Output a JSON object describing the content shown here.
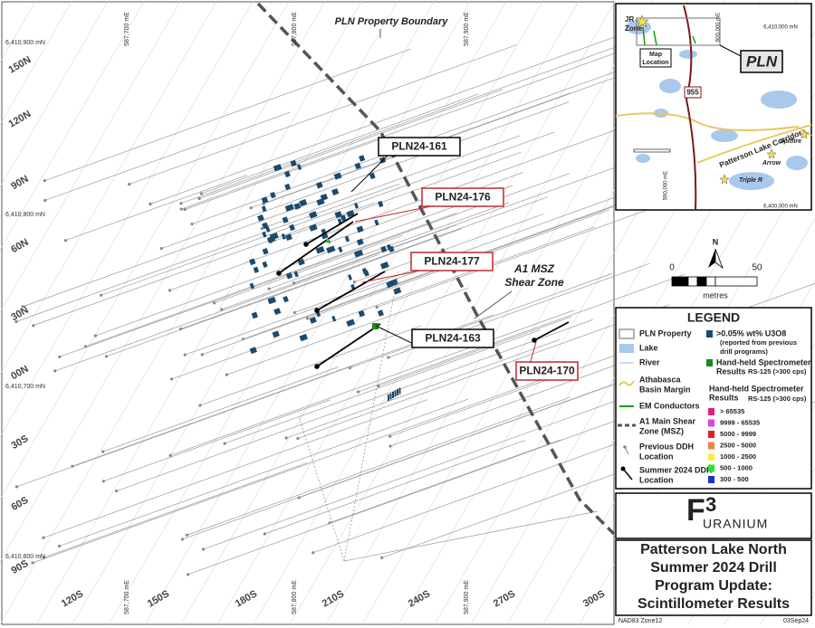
{
  "map": {
    "boundary_label": "PLN Property Boundary",
    "shear_zone_label": [
      "A1 MSZ",
      "Shear Zone"
    ],
    "section_labels_left": [
      "150N",
      "120N",
      "90N",
      "60N",
      "30N",
      "00N",
      "30S",
      "60S",
      "90S"
    ],
    "section_labels_bottom": [
      "120S",
      "150S",
      "180S",
      "210S",
      "240S",
      "270S",
      "300S"
    ],
    "easting_labels_top": [
      "587,700 mE",
      "587,800 mE",
      "587,900 mE"
    ],
    "easting_labels_bottom": [
      "587,700 mE",
      "587,800 mE",
      "587,900 mE"
    ],
    "northing_labels": [
      "6,410,900 mN",
      "6,410,800 mN",
      "6,410,700 mN",
      "6,410,600 mN"
    ],
    "drill_holes": [
      {
        "label": "PLN24-161",
        "color": "#000000"
      },
      {
        "label": "PLN24-176",
        "color": "#c0282d"
      },
      {
        "label": "PLN24-177",
        "color": "#c0282d"
      },
      {
        "label": "PLN24-163",
        "color": "#000000"
      },
      {
        "label": "PLN24-170",
        "color": "#c0282d"
      }
    ],
    "scale": {
      "north": "N",
      "start": "0",
      "end": "50",
      "unit": "metres"
    }
  },
  "inset": {
    "jr_zone": [
      "JR",
      "Zone"
    ],
    "map_location": [
      "Map",
      "Location"
    ],
    "pln": "PLN",
    "highway": "955",
    "corridor": "Patterson Lake Corridor",
    "deposits": [
      "Spitfire",
      "Arrow",
      "Triple R"
    ],
    "eastings": [
      "600,000 mE",
      "590,000 mE"
    ],
    "northings": [
      "6,410,000 mN",
      "6,400,000 mN"
    ]
  },
  "legend": {
    "title": "LEGEND",
    "items": [
      [
        "PLN Property"
      ],
      [
        "Lake"
      ],
      [
        "River"
      ],
      [
        "Athabasca",
        "Basin Margin"
      ],
      [
        "EM Conductors"
      ],
      [
        "A1 Main Shear",
        "Zone (MSZ)"
      ],
      [
        "Previous DDH",
        "Location"
      ],
      [
        "Summer 2024 DDH",
        "Location"
      ]
    ],
    "u3o8": [
      ">0.05% wt% U3O8",
      "(reported from previous",
      "drill programs)"
    ],
    "handheld": [
      "Hand-held Spectrometer",
      "Results",
      "RS-125 (>300 cps)"
    ],
    "spectro_title": [
      "Hand-held Spectrometer",
      "Results",
      "RS-125 (>300 cps)"
    ],
    "bins": [
      {
        "label": "> 65535",
        "color": "#e0207a"
      },
      {
        "label": "9999 - 65535",
        "color": "#e040e8"
      },
      {
        "label": "5000 - 9999",
        "color": "#e02020"
      },
      {
        "label": "2500 - 5000",
        "color": "#f0804a"
      },
      {
        "label": "1000 - 2500",
        "color": "#f4f04a"
      },
      {
        "label": "500 - 1000",
        "color": "#30e030"
      },
      {
        "label": "300 - 500",
        "color": "#2030d0"
      }
    ]
  },
  "logo": {
    "mark": "F",
    "sup": "3",
    "word": "URANIUM"
  },
  "title": [
    "Patterson Lake North",
    "Summer 2024 Drill",
    "Program Update:",
    "Scintillometer Results"
  ],
  "footer": {
    "datum": "NAD83 Zone12",
    "date": "03Sep24"
  }
}
